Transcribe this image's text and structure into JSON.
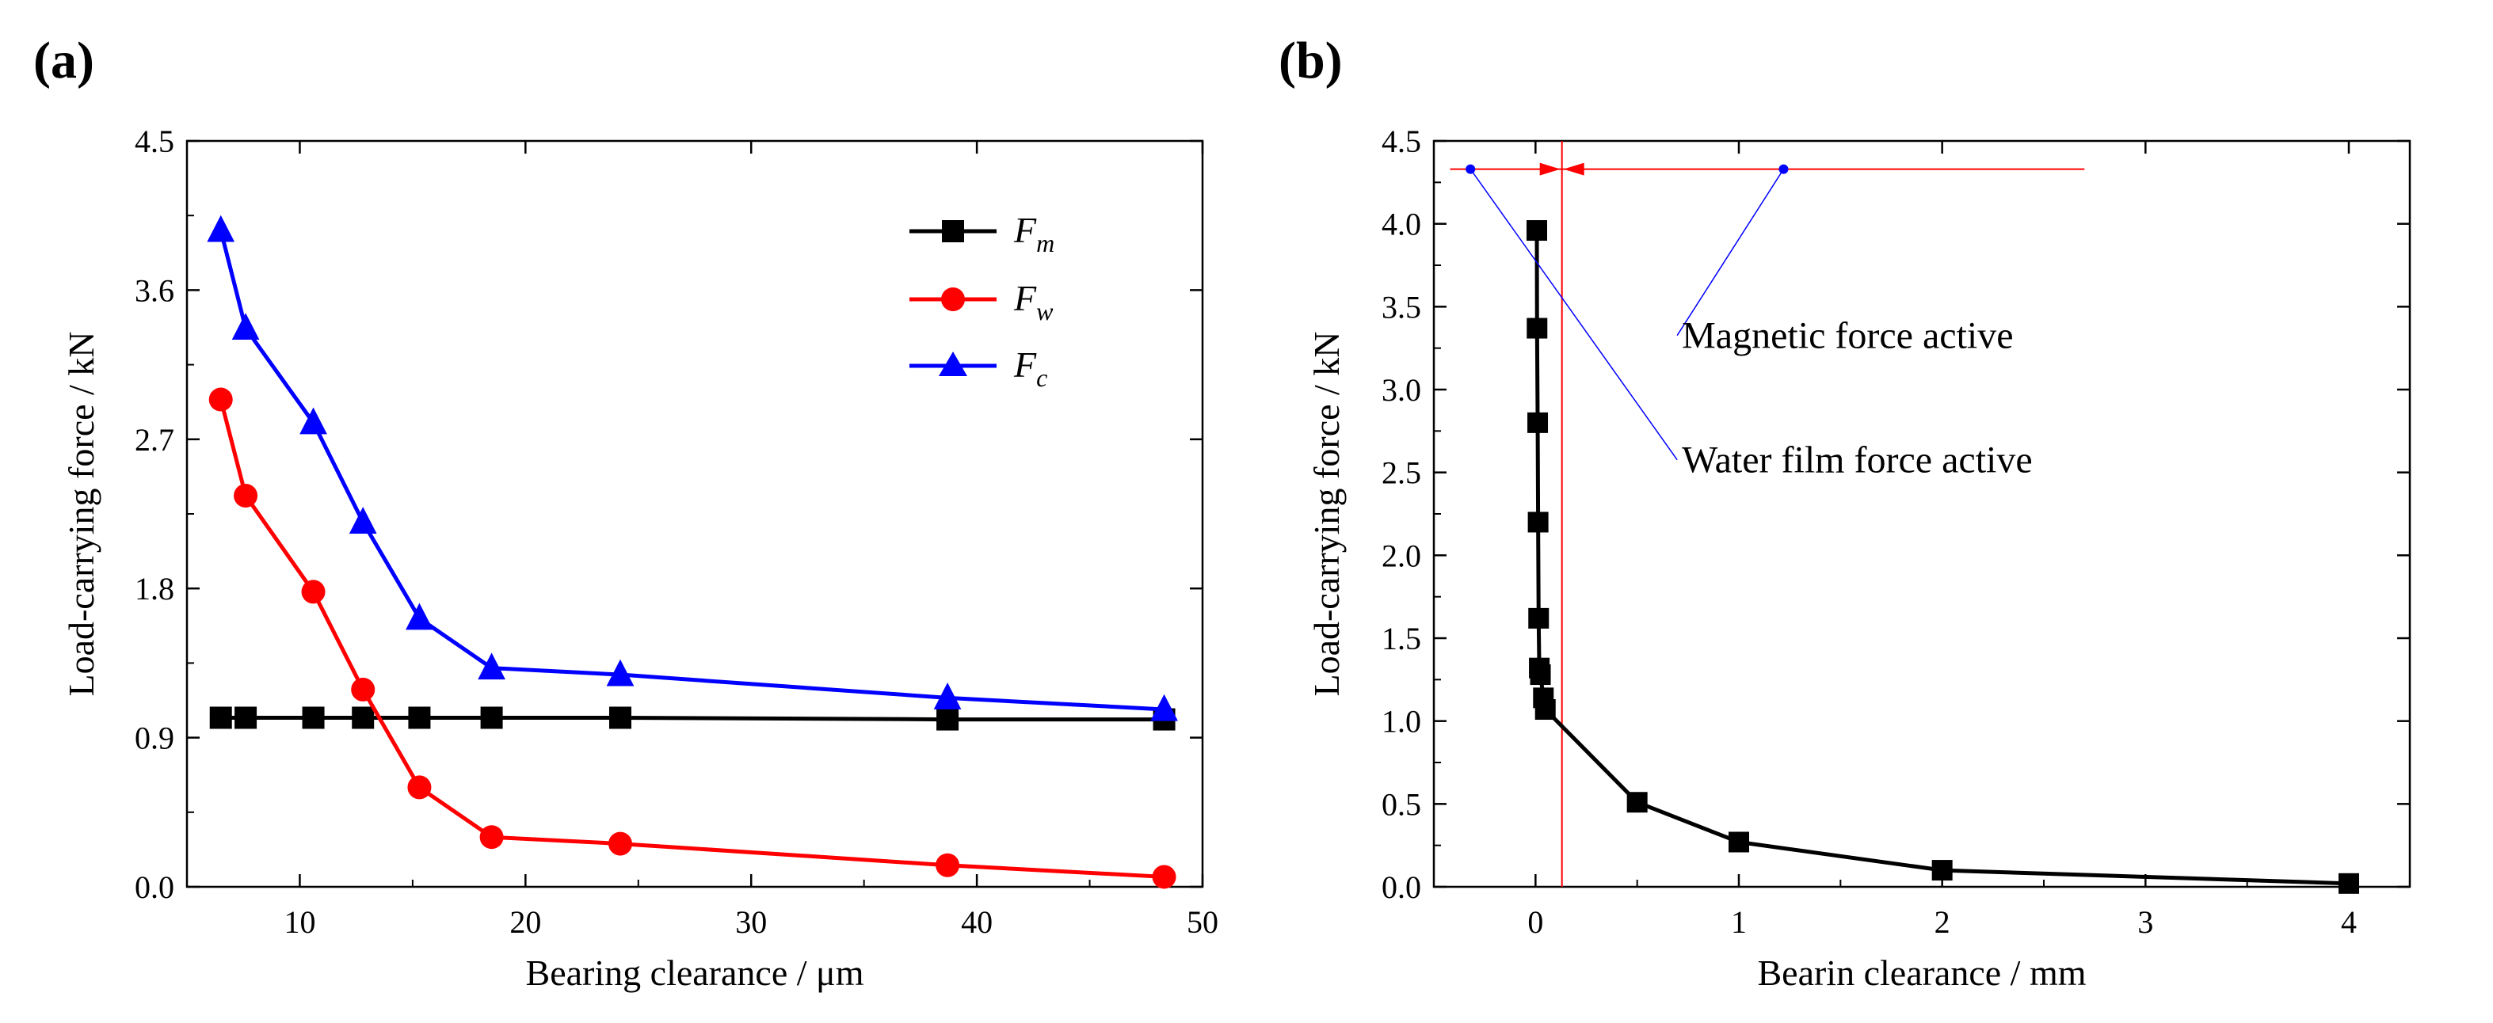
{
  "chart_data": [
    {
      "type": "line",
      "panel_label": "(a)",
      "xlabel": "Bearing clearance / μm",
      "ylabel": "Load-carrying force / kN",
      "xlim": [
        5,
        50
      ],
      "ylim": [
        0,
        4.5
      ],
      "x_ticks": [
        10,
        20,
        30,
        40,
        50
      ],
      "x_tick_labels": [
        "10",
        "20",
        "30",
        "40",
        "50"
      ],
      "y_ticks": [
        0,
        0.9,
        1.8,
        2.7,
        3.6,
        4.5
      ],
      "y_tick_labels": [
        "0.0",
        "0.9",
        "1.8",
        "2.7",
        "3.6",
        "4.5"
      ],
      "grid": false,
      "legend_position": "top-right",
      "x": [
        6.5,
        7.6,
        10.6,
        12.8,
        15.3,
        18.5,
        24.2,
        38.7,
        48.3
      ],
      "series": [
        {
          "name": "F",
          "subscript": "m",
          "color": "#000000",
          "marker": "square",
          "values": [
            1.02,
            1.02,
            1.02,
            1.02,
            1.02,
            1.02,
            1.02,
            1.01,
            1.01
          ]
        },
        {
          "name": "F",
          "subscript": "w",
          "color": "#ff0000",
          "marker": "circle",
          "values": [
            2.94,
            2.36,
            1.78,
            1.19,
            0.6,
            0.3,
            0.26,
            0.13,
            0.06
          ]
        },
        {
          "name": "F",
          "subscript": "c",
          "color": "#0000ff",
          "marker": "triangle",
          "values": [
            3.96,
            3.37,
            2.8,
            2.2,
            1.62,
            1.32,
            1.28,
            1.14,
            1.07
          ]
        }
      ]
    },
    {
      "type": "line",
      "panel_label": "(b)",
      "xlabel": "Bearin clearance / mm",
      "ylabel": "Load-carrying force / kN",
      "xlim": [
        -0.5,
        4.3
      ],
      "ylim": [
        0,
        4.5
      ],
      "x_ticks": [
        0,
        1,
        2,
        3,
        4
      ],
      "x_tick_labels": [
        "0",
        "1",
        "2",
        "3",
        "4"
      ],
      "y_ticks": [
        0,
        0.5,
        1.0,
        1.5,
        2.0,
        2.5,
        3.0,
        3.5,
        4.0,
        4.5
      ],
      "y_tick_labels": [
        "0.0",
        "0.5",
        "1.0",
        "1.5",
        "2.0",
        "2.5",
        "3.0",
        "3.5",
        "4.0",
        "4.5"
      ],
      "grid": false,
      "series": [
        {
          "name": "Fc",
          "color": "#000000",
          "marker": "square",
          "x": [
            0.0065,
            0.0076,
            0.0106,
            0.0128,
            0.0153,
            0.0185,
            0.0242,
            0.0387,
            0.0483,
            0.5,
            1.0,
            2.0,
            4.0
          ],
          "values": [
            3.96,
            3.37,
            2.8,
            2.2,
            1.62,
            1.32,
            1.28,
            1.14,
            1.07,
            0.51,
            0.27,
            0.1,
            0.02
          ]
        }
      ],
      "vline": {
        "x": 0.13,
        "color": "#ff0000"
      },
      "hline": {
        "y": 4.33,
        "x_start": -0.42,
        "x_end": 2.7,
        "color": "#ff0000"
      },
      "annotations": [
        {
          "text": "Magnetic force active",
          "text_x": 0.72,
          "text_y": 3.25,
          "point_x": 1.22,
          "point_y": 4.33
        },
        {
          "text": "Water film force active",
          "text_x": 0.72,
          "text_y": 2.5,
          "point_x": -0.32,
          "point_y": 4.33
        }
      ]
    }
  ]
}
